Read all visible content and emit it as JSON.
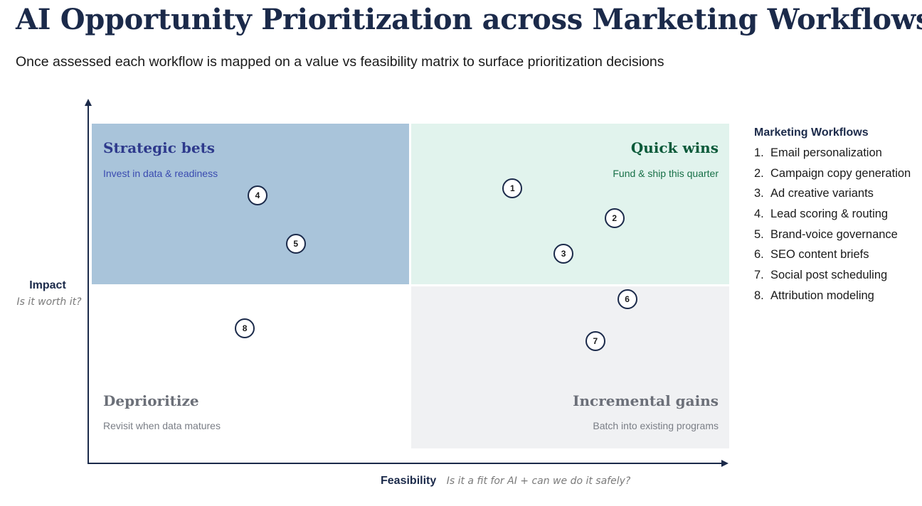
{
  "title": "AI Opportunity Prioritization across Marketing Workflows",
  "subtitle": "Once assessed each workflow is mapped on a value vs feasibility matrix to surface prioritization decisions",
  "axes": {
    "y_label": "Impact",
    "y_sub": "Is it worth it?",
    "x_label": "Feasibility",
    "x_sub": "Is it a fit for AI + can we do it safely?"
  },
  "quadrants": {
    "strategic_bets": {
      "title": "Strategic bets",
      "sub": "Invest in data & readiness",
      "color": "#a9c4da",
      "title_color": "#2e3a8c",
      "sub_color": "#3a4bb0"
    },
    "quick_wins": {
      "title": "Quick wins",
      "sub": "Fund & ship this quarter",
      "color": "#e1f3ed",
      "title_color": "#0b5a3a",
      "sub_color": "#187048"
    },
    "deprioritize": {
      "title": "Deprioritize",
      "sub": "Revisit when data matures",
      "color": "#ffffff",
      "title_color": "#6b6f78",
      "sub_color": "#7a7e86"
    },
    "incremental_gains": {
      "title": "Incremental gains",
      "sub": "Batch into existing programs",
      "color": "#f0f1f3",
      "title_color": "#6b6f78",
      "sub_color": "#7a7e86"
    }
  },
  "points": [
    {
      "label": "1",
      "feasibility": 0.66,
      "impact": 0.8
    },
    {
      "label": "2",
      "feasibility": 0.82,
      "impact": 0.71
    },
    {
      "label": "3",
      "feasibility": 0.74,
      "impact": 0.6
    },
    {
      "label": "4",
      "feasibility": 0.26,
      "impact": 0.78
    },
    {
      "label": "5",
      "feasibility": 0.32,
      "impact": 0.63
    },
    {
      "label": "6",
      "feasibility": 0.84,
      "impact": 0.46
    },
    {
      "label": "7",
      "feasibility": 0.79,
      "impact": 0.33
    },
    {
      "label": "8",
      "feasibility": 0.24,
      "impact": 0.37
    }
  ],
  "legend": {
    "title": "Marketing Workflows",
    "items": [
      {
        "num": "1.",
        "label": "Email personalization"
      },
      {
        "num": "2.",
        "label": "Campaign copy generation"
      },
      {
        "num": "3.",
        "label": "Ad creative variants"
      },
      {
        "num": "4.",
        "label": "Lead scoring & routing"
      },
      {
        "num": "5.",
        "label": "Brand-voice governance"
      },
      {
        "num": "6.",
        "label": "SEO content briefs"
      },
      {
        "num": "7.",
        "label": "Social post scheduling"
      },
      {
        "num": "8.",
        "label": "Attribution modeling"
      }
    ]
  },
  "colors": {
    "navy": "#1b2a4a"
  }
}
